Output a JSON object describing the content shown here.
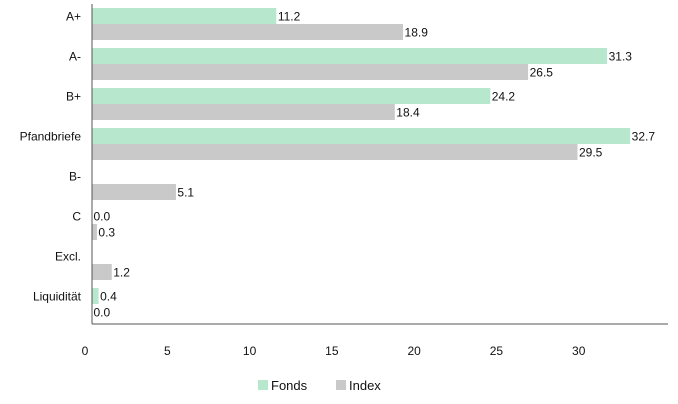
{
  "chart_data": {
    "type": "bar",
    "orientation": "horizontal",
    "categories": [
      "A+",
      "A-",
      "B+",
      "Pfandbriefe",
      "B-",
      "C",
      "Excl.",
      "Liquidität"
    ],
    "series": [
      {
        "name": "Fonds",
        "color": "#b7e8cd",
        "values": [
          11.2,
          31.3,
          24.2,
          32.7,
          null,
          0.0,
          null,
          0.4
        ],
        "value_labels": [
          "11.2",
          "31.3",
          "24.2",
          "32.7",
          null,
          "0.0",
          null,
          "0.4"
        ]
      },
      {
        "name": "Index",
        "color": "#c9c9c9",
        "values": [
          18.9,
          26.5,
          18.4,
          29.5,
          5.1,
          0.3,
          1.2,
          0.0
        ],
        "value_labels": [
          "18.9",
          "26.5",
          "18.4",
          "29.5",
          "5.1",
          "0.3",
          "1.2",
          "0.0"
        ]
      }
    ],
    "x_ticks": [
      "0",
      "5",
      "10",
      "15",
      "20",
      "25",
      "30"
    ],
    "xlim": [
      0,
      35
    ],
    "xlabel": "",
    "ylabel": "",
    "title": "",
    "grid": false,
    "legend_position": "bottom-center",
    "axis_color": "#555555"
  }
}
